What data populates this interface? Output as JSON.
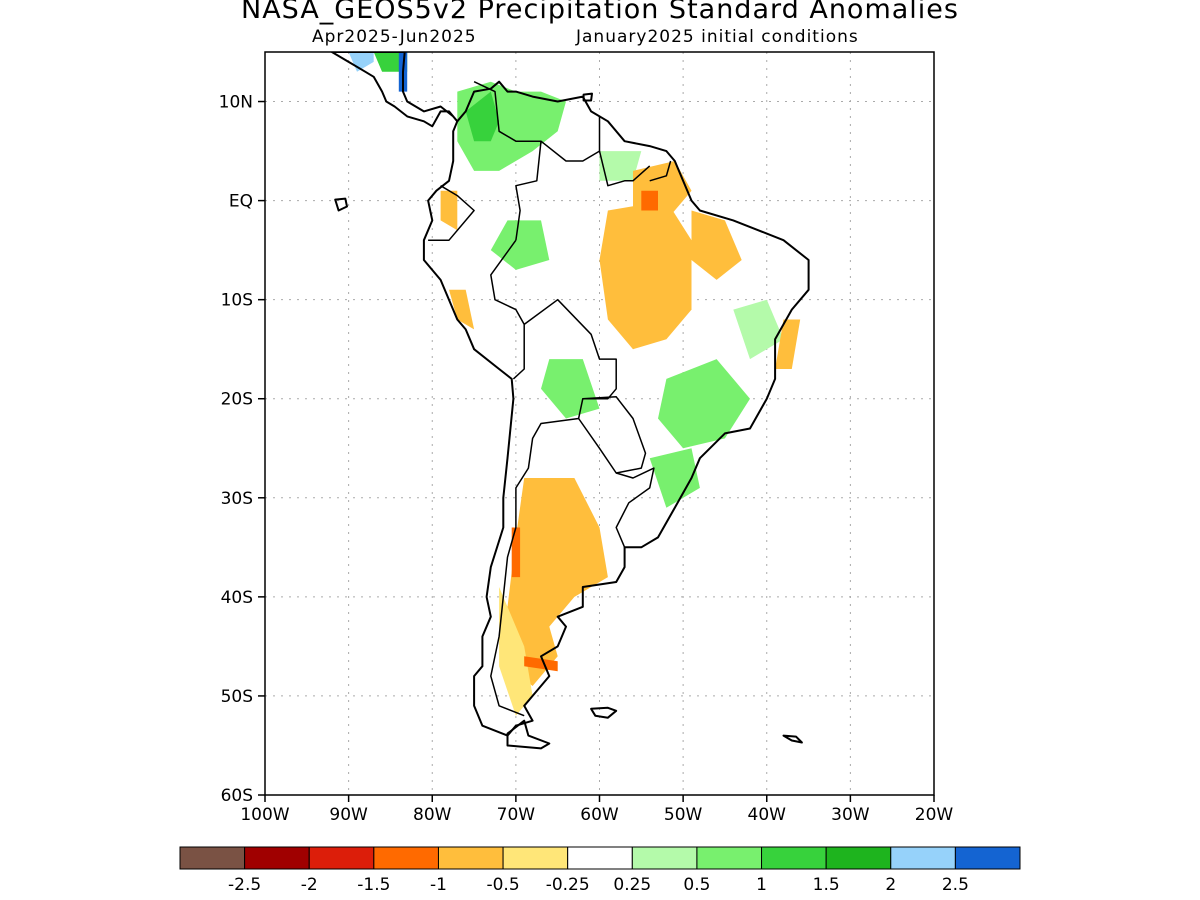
{
  "title": "NASA_GEOS5v2 Precipitation Standard Anomalies",
  "subtitle_left": "Apr2025-Jun2025",
  "subtitle_right": "January2025 initial conditions",
  "map": {
    "lon_range": [
      -100,
      -20
    ],
    "lat_range": [
      -60,
      15
    ],
    "lat_ticks": [
      {
        "lat": 10,
        "label": "10N"
      },
      {
        "lat": 0,
        "label": "EQ"
      },
      {
        "lat": -10,
        "label": "10S"
      },
      {
        "lat": -20,
        "label": "20S"
      },
      {
        "lat": -30,
        "label": "30S"
      },
      {
        "lat": -40,
        "label": "40S"
      },
      {
        "lat": -50,
        "label": "50S"
      },
      {
        "lat": -60,
        "label": "60S"
      }
    ],
    "lon_ticks": [
      {
        "lon": -100,
        "label": "100W"
      },
      {
        "lon": -90,
        "label": "90W"
      },
      {
        "lon": -80,
        "label": "80W"
      },
      {
        "lon": -70,
        "label": "70W"
      },
      {
        "lon": -60,
        "label": "60W"
      },
      {
        "lon": -50,
        "label": "50W"
      },
      {
        "lon": -40,
        "label": "40W"
      },
      {
        "lon": -30,
        "label": "30W"
      },
      {
        "lon": -20,
        "label": "20W"
      }
    ],
    "grid": true
  },
  "colorbar": {
    "colors": [
      "#7a5244",
      "#a00000",
      "#dc1e0a",
      "#ff6a00",
      "#ffbe3c",
      "#ffe678",
      "#ffffff",
      "#b4faaa",
      "#78f06e",
      "#37d23c",
      "#1eb41e",
      "#96d2fa",
      "#1464d2"
    ],
    "labels": [
      "-2.5",
      "-2",
      "-1.5",
      "-1",
      "-0.5",
      "-0.25",
      "0.25",
      "0.5",
      "1",
      "1.5",
      "2",
      "2.5"
    ]
  },
  "anomaly_patches": [
    {
      "level": "1",
      "color": "#78f06e",
      "pts": [
        [
          -77,
          11
        ],
        [
          -73,
          12
        ],
        [
          -70,
          11
        ],
        [
          -67,
          11
        ],
        [
          -64,
          10
        ],
        [
          -65,
          7
        ],
        [
          -68,
          5
        ],
        [
          -72,
          3
        ],
        [
          -75,
          3
        ],
        [
          -77,
          6
        ]
      ]
    },
    {
      "level": "1.5",
      "color": "#37d23c",
      "pts": [
        [
          -76,
          9
        ],
        [
          -73,
          11
        ],
        [
          -72,
          8
        ],
        [
          -73,
          6
        ],
        [
          -75,
          6
        ]
      ]
    },
    {
      "level": "1",
      "color": "#78f06e",
      "pts": [
        [
          -71,
          -2
        ],
        [
          -67,
          -2
        ],
        [
          -66,
          -6
        ],
        [
          -70,
          -7
        ],
        [
          -73,
          -5
        ]
      ]
    },
    {
      "level": "1",
      "color": "#78f06e",
      "pts": [
        [
          -66,
          -16
        ],
        [
          -62,
          -16
        ],
        [
          -60,
          -21
        ],
        [
          -64,
          -22
        ],
        [
          -67,
          -19
        ]
      ]
    },
    {
      "level": "1",
      "color": "#78f06e",
      "pts": [
        [
          -52,
          -18
        ],
        [
          -46,
          -16
        ],
        [
          -42,
          -20
        ],
        [
          -45,
          -24
        ],
        [
          -50,
          -25
        ],
        [
          -53,
          -22
        ]
      ]
    },
    {
      "level": "0.5",
      "color": "#b4faaa",
      "pts": [
        [
          -44,
          -11
        ],
        [
          -40,
          -10
        ],
        [
          -38,
          -14
        ],
        [
          -42,
          -16
        ]
      ]
    },
    {
      "level": "1",
      "color": "#78f06e",
      "pts": [
        [
          -54,
          -26
        ],
        [
          -49,
          -25
        ],
        [
          -48,
          -29
        ],
        [
          -52,
          -31
        ]
      ]
    },
    {
      "level": "0.5",
      "color": "#b4faaa",
      "pts": [
        [
          -60,
          5
        ],
        [
          -55,
          5
        ],
        [
          -56,
          2
        ],
        [
          -60,
          2
        ]
      ]
    },
    {
      "level": "-0.5",
      "color": "#ffbe3c",
      "pts": [
        [
          -59,
          -1
        ],
        [
          -52,
          0
        ],
        [
          -49,
          -4
        ],
        [
          -49,
          -11
        ],
        [
          -52,
          -14
        ],
        [
          -56,
          -15
        ],
        [
          -59,
          -12
        ],
        [
          -60,
          -6
        ]
      ]
    },
    {
      "level": "-0.5",
      "color": "#ffbe3c",
      "pts": [
        [
          -56,
          3
        ],
        [
          -51,
          4
        ],
        [
          -49,
          1
        ],
        [
          -52,
          -2
        ],
        [
          -56,
          -1
        ]
      ]
    },
    {
      "level": "-0.5",
      "color": "#ffbe3c",
      "pts": [
        [
          -49,
          -1
        ],
        [
          -45,
          -2
        ],
        [
          -43,
          -6
        ],
        [
          -46,
          -8
        ],
        [
          -49,
          -6
        ]
      ]
    },
    {
      "level": "-0.5",
      "color": "#ffbe3c",
      "pts": [
        [
          -38,
          -12
        ],
        [
          -36,
          -12
        ],
        [
          -37,
          -17
        ],
        [
          -39,
          -17
        ]
      ]
    },
    {
      "level": "-0.5",
      "color": "#ffbe3c",
      "pts": [
        [
          -69,
          -28
        ],
        [
          -63,
          -28
        ],
        [
          -60,
          -33
        ],
        [
          -59,
          -38
        ],
        [
          -63,
          -40
        ],
        [
          -66,
          -43
        ],
        [
          -65,
          -46
        ],
        [
          -68,
          -49
        ],
        [
          -71,
          -47
        ],
        [
          -71,
          -41
        ],
        [
          -70,
          -34
        ]
      ]
    },
    {
      "level": "-0.25",
      "color": "#ffe678",
      "pts": [
        [
          -72,
          -39
        ],
        [
          -69,
          -45
        ],
        [
          -68,
          -50
        ],
        [
          -70,
          -52
        ],
        [
          -72,
          -47
        ]
      ]
    },
    {
      "level": "-1",
      "color": "#ff6a00",
      "pts": [
        [
          -70.5,
          -33
        ],
        [
          -69.5,
          -33
        ],
        [
          -69.5,
          -38
        ],
        [
          -70.5,
          -38
        ]
      ]
    },
    {
      "level": "-1",
      "color": "#ff6a00",
      "pts": [
        [
          -69,
          -46
        ],
        [
          -65,
          -46.5
        ],
        [
          -65,
          -47.5
        ],
        [
          -69,
          -47
        ]
      ]
    },
    {
      "level": "-1",
      "color": "#ff6a00",
      "pts": [
        [
          -55,
          1
        ],
        [
          -53,
          1
        ],
        [
          -53,
          -1
        ],
        [
          -55,
          -1
        ]
      ]
    },
    {
      "level": "-0.5",
      "color": "#ffbe3c",
      "pts": [
        [
          -79,
          1
        ],
        [
          -77,
          1
        ],
        [
          -77,
          -3
        ],
        [
          -79,
          -2
        ]
      ]
    },
    {
      "level": "-0.5",
      "color": "#ffbe3c",
      "pts": [
        [
          -78,
          -9
        ],
        [
          -76,
          -9
        ],
        [
          -75,
          -13
        ],
        [
          -77,
          -12
        ]
      ]
    },
    {
      "level": "1.5",
      "color": "#37d23c",
      "pts": [
        [
          -87,
          15
        ],
        [
          -83,
          15
        ],
        [
          -83,
          13
        ],
        [
          -86,
          13
        ]
      ]
    },
    {
      "level": "2.5",
      "color": "#1464d2",
      "pts": [
        [
          -84,
          15
        ],
        [
          -83,
          15
        ],
        [
          -83,
          11
        ],
        [
          -84,
          11
        ]
      ]
    },
    {
      "level": "2",
      "color": "#96d2fa",
      "pts": [
        [
          -90,
          15
        ],
        [
          -87,
          15
        ],
        [
          -87,
          14
        ],
        [
          -89,
          13
        ]
      ]
    }
  ],
  "coastlines": [
    {
      "name": "south-america",
      "pts": [
        [
          -77,
          8
        ],
        [
          -76,
          9
        ],
        [
          -75,
          11
        ],
        [
          -73,
          11.3
        ],
        [
          -72,
          12
        ],
        [
          -71,
          11
        ],
        [
          -70,
          11
        ],
        [
          -68,
          10.5
        ],
        [
          -65,
          10
        ],
        [
          -62,
          10.5
        ],
        [
          -61,
          9
        ],
        [
          -59,
          8
        ],
        [
          -57,
          6
        ],
        [
          -54,
          5.5
        ],
        [
          -52,
          5
        ],
        [
          -51,
          4
        ],
        [
          -50,
          2
        ],
        [
          -49,
          0
        ],
        [
          -48,
          -1
        ],
        [
          -44,
          -2
        ],
        [
          -41,
          -3
        ],
        [
          -38,
          -4
        ],
        [
          -35,
          -6
        ],
        [
          -35,
          -9
        ],
        [
          -37,
          -11
        ],
        [
          -39,
          -14
        ],
        [
          -39,
          -18
        ],
        [
          -40,
          -20
        ],
        [
          -42,
          -23
        ],
        [
          -45,
          -23.5
        ],
        [
          -48,
          -26
        ],
        [
          -49,
          -28
        ],
        [
          -51,
          -31
        ],
        [
          -53,
          -34
        ],
        [
          -55,
          -35
        ],
        [
          -57,
          -35
        ],
        [
          -57,
          -37
        ],
        [
          -58,
          -38.5
        ],
        [
          -62,
          -39
        ],
        [
          -62,
          -41
        ],
        [
          -65,
          -42
        ],
        [
          -64,
          -43
        ],
        [
          -65,
          -45
        ],
        [
          -67,
          -46
        ],
        [
          -66,
          -48
        ],
        [
          -68,
          -50
        ],
        [
          -69,
          -51
        ],
        [
          -68,
          -52.5
        ],
        [
          -70,
          -53
        ],
        [
          -71,
          -54
        ],
        [
          -74,
          -53
        ],
        [
          -75,
          -51
        ],
        [
          -75,
          -48
        ],
        [
          -74,
          -47
        ],
        [
          -74,
          -44
        ],
        [
          -73,
          -42
        ],
        [
          -73.5,
          -40
        ],
        [
          -73,
          -37
        ],
        [
          -71.5,
          -33
        ],
        [
          -71.5,
          -30
        ],
        [
          -71,
          -26
        ],
        [
          -70.3,
          -20
        ],
        [
          -70.5,
          -18
        ],
        [
          -72,
          -17
        ],
        [
          -75,
          -15
        ],
        [
          -76,
          -13
        ],
        [
          -77,
          -12
        ],
        [
          -79,
          -8
        ],
        [
          -81,
          -6
        ],
        [
          -81,
          -4
        ],
        [
          -80,
          -2
        ],
        [
          -80.5,
          0
        ],
        [
          -79.5,
          1
        ],
        [
          -78,
          2
        ],
        [
          -77.5,
          4
        ],
        [
          -77.5,
          7
        ]
      ]
    },
    {
      "name": "central-america",
      "pts": [
        [
          -92,
          15
        ],
        [
          -90,
          14
        ],
        [
          -88,
          13
        ],
        [
          -87,
          12.5
        ],
        [
          -86,
          11
        ],
        [
          -85.5,
          10
        ],
        [
          -84.5,
          9.5
        ],
        [
          -83,
          8.5
        ],
        [
          -81,
          8
        ],
        [
          -80,
          7.5
        ],
        [
          -79,
          9
        ],
        [
          -78,
          9
        ],
        [
          -77,
          8
        ],
        [
          -77.5,
          8.5
        ],
        [
          -79,
          9.5
        ],
        [
          -81,
          9
        ],
        [
          -83,
          10
        ],
        [
          -83.5,
          11
        ],
        [
          -83.5,
          13
        ],
        [
          -83.3,
          15
        ]
      ]
    },
    {
      "name": "tierra-del-fuego",
      "pts": [
        [
          -69,
          -52.5
        ],
        [
          -68.5,
          -54
        ],
        [
          -66,
          -54.8
        ],
        [
          -67,
          -55.3
        ],
        [
          -71,
          -55
        ],
        [
          -71,
          -53.8
        ]
      ]
    },
    {
      "name": "falklands",
      "pts": [
        [
          -61,
          -51.3
        ],
        [
          -59,
          -51.2
        ],
        [
          -58,
          -51.5
        ],
        [
          -59,
          -52.2
        ],
        [
          -60.5,
          -52
        ]
      ]
    },
    {
      "name": "south-georgia",
      "pts": [
        [
          -38,
          -54
        ],
        [
          -36.5,
          -54.1
        ],
        [
          -35.8,
          -54.7
        ],
        [
          -37,
          -54.5
        ]
      ]
    },
    {
      "name": "galapagos",
      "pts": [
        [
          -91.6,
          0.1
        ],
        [
          -90.4,
          0.2
        ],
        [
          -90.2,
          -0.6
        ],
        [
          -91.2,
          -1.0
        ]
      ]
    },
    {
      "name": "trinidad",
      "pts": [
        [
          -61.9,
          10.7
        ],
        [
          -60.9,
          10.8
        ],
        [
          -61,
          10.1
        ],
        [
          -61.9,
          10.1
        ]
      ]
    }
  ],
  "borders": [
    {
      "pts": [
        [
          -75,
          12
        ],
        [
          -72.5,
          11
        ],
        [
          -72,
          7
        ],
        [
          -70,
          6
        ],
        [
          -67,
          6
        ],
        [
          -67.5,
          2
        ],
        [
          -70,
          1.5
        ],
        [
          -69.5,
          -1
        ],
        [
          -70,
          -4
        ]
      ]
    },
    {
      "pts": [
        [
          -79,
          1.5
        ],
        [
          -77,
          0.5
        ],
        [
          -75,
          -1
        ],
        [
          -78,
          -4
        ],
        [
          -80.5,
          -4
        ]
      ]
    },
    {
      "pts": [
        [
          -70,
          -4
        ],
        [
          -73,
          -7.5
        ],
        [
          -72.5,
          -10
        ],
        [
          -70,
          -11
        ],
        [
          -69,
          -12.5
        ],
        [
          -69,
          -15
        ],
        [
          -69,
          -17
        ],
        [
          -70.3,
          -18
        ]
      ]
    },
    {
      "pts": [
        [
          -69,
          -12.5
        ],
        [
          -65,
          -10
        ],
        [
          -61,
          -13.5
        ],
        [
          -60,
          -16
        ],
        [
          -58,
          -16
        ],
        [
          -58,
          -19
        ],
        [
          -59,
          -20
        ],
        [
          -62,
          -20
        ],
        [
          -62.5,
          -22
        ],
        [
          -67,
          -22.5
        ],
        [
          -68,
          -24
        ],
        [
          -68.5,
          -27
        ],
        [
          -70,
          -29
        ],
        [
          -70,
          -33
        ],
        [
          -71,
          -36
        ],
        [
          -71.5,
          -40
        ],
        [
          -72,
          -44
        ],
        [
          -73,
          -48
        ],
        [
          -72,
          -51
        ],
        [
          -69,
          -52
        ]
      ]
    },
    {
      "pts": [
        [
          -62,
          -20
        ],
        [
          -58,
          -19.8
        ],
        [
          -56,
          -22
        ],
        [
          -54.5,
          -25.5
        ],
        [
          -55,
          -27
        ],
        [
          -58,
          -27.5
        ],
        [
          -60,
          -25
        ],
        [
          -62.5,
          -22
        ]
      ]
    },
    {
      "pts": [
        [
          -58,
          -27.5
        ],
        [
          -56,
          -28
        ],
        [
          -53.5,
          -27
        ],
        [
          -54,
          -29
        ],
        [
          -56.5,
          -30.5
        ],
        [
          -58,
          -33
        ],
        [
          -57,
          -35
        ]
      ]
    },
    {
      "pts": [
        [
          -67,
          6
        ],
        [
          -64,
          4
        ],
        [
          -62,
          4
        ],
        [
          -60,
          5
        ],
        [
          -60,
          8.5
        ]
      ]
    },
    {
      "pts": [
        [
          -60,
          5
        ],
        [
          -59,
          1.5
        ],
        [
          -57,
          2
        ],
        [
          -56,
          2
        ],
        [
          -54,
          3.5
        ]
      ]
    },
    {
      "pts": [
        [
          -54,
          2
        ],
        [
          -52,
          2.5
        ],
        [
          -51.5,
          4
        ]
      ]
    }
  ]
}
